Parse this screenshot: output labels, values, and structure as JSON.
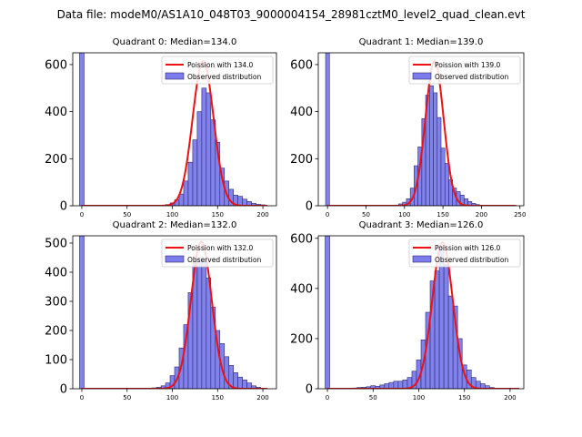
{
  "figure": {
    "suptitle": "Data file: modeM0/AS1A10_048T03_9000004154_28981cztM0_level2_quad_clean.evt"
  },
  "colors": {
    "bar_fill": "#7b7bec",
    "bar_edge": "#2a2a70",
    "poisson_line": "#ee1111",
    "axis": "#000000"
  },
  "chart_data": [
    {
      "type": "bar",
      "title": "Quadrant 0: Median=134.0",
      "median": 134.0,
      "legend": [
        "Poission with 134.0",
        "Observed distribution"
      ],
      "legend_position": "top-right",
      "xlim": [
        -10,
        215
      ],
      "ylim": [
        0,
        650
      ],
      "xticks": [
        0,
        50,
        100,
        150,
        200
      ],
      "yticks": [
        0,
        200,
        400,
        600
      ],
      "bin_width": 5,
      "outlier_bar": {
        "x": 0,
        "value": 650
      },
      "bins": [
        {
          "x": 95,
          "value": 5
        },
        {
          "x": 100,
          "value": 12
        },
        {
          "x": 105,
          "value": 25
        },
        {
          "x": 110,
          "value": 50
        },
        {
          "x": 115,
          "value": 105
        },
        {
          "x": 120,
          "value": 185
        },
        {
          "x": 125,
          "value": 280
        },
        {
          "x": 130,
          "value": 400
        },
        {
          "x": 135,
          "value": 500
        },
        {
          "x": 140,
          "value": 480
        },
        {
          "x": 145,
          "value": 365
        },
        {
          "x": 150,
          "value": 270
        },
        {
          "x": 155,
          "value": 160
        },
        {
          "x": 160,
          "value": 105
        },
        {
          "x": 165,
          "value": 70
        },
        {
          "x": 170,
          "value": 45
        },
        {
          "x": 175,
          "value": 40
        },
        {
          "x": 180,
          "value": 28
        },
        {
          "x": 185,
          "value": 18
        },
        {
          "x": 190,
          "value": 10
        },
        {
          "x": 195,
          "value": 6
        },
        {
          "x": 200,
          "value": 4
        }
      ],
      "poisson_peak": 615,
      "poisson_range": [
        0,
        205
      ]
    },
    {
      "type": "bar",
      "title": "Quadrant 1: Median=139.0",
      "median": 139.0,
      "legend": [
        "Poission with 139.0",
        "Observed distribution"
      ],
      "legend_position": "top-right",
      "xlim": [
        -12,
        255
      ],
      "ylim": [
        0,
        650
      ],
      "xticks": [
        0,
        50,
        100,
        150,
        200,
        250
      ],
      "yticks": [
        0,
        200,
        400,
        600
      ],
      "bin_width": 5,
      "outlier_bar": {
        "x": 0,
        "value": 650
      },
      "bins": [
        {
          "x": 90,
          "value": 3
        },
        {
          "x": 95,
          "value": 8
        },
        {
          "x": 100,
          "value": 15
        },
        {
          "x": 105,
          "value": 30
        },
        {
          "x": 110,
          "value": 75
        },
        {
          "x": 115,
          "value": 170
        },
        {
          "x": 120,
          "value": 250
        },
        {
          "x": 125,
          "value": 370
        },
        {
          "x": 130,
          "value": 470
        },
        {
          "x": 135,
          "value": 510
        },
        {
          "x": 140,
          "value": 480
        },
        {
          "x": 145,
          "value": 375
        },
        {
          "x": 150,
          "value": 245
        },
        {
          "x": 155,
          "value": 180
        },
        {
          "x": 160,
          "value": 110
        },
        {
          "x": 165,
          "value": 75
        },
        {
          "x": 170,
          "value": 60
        },
        {
          "x": 175,
          "value": 45
        },
        {
          "x": 180,
          "value": 30
        },
        {
          "x": 185,
          "value": 18
        },
        {
          "x": 190,
          "value": 10
        },
        {
          "x": 195,
          "value": 5
        }
      ],
      "poisson_peak": 615,
      "poisson_range": [
        0,
        245
      ]
    },
    {
      "type": "bar",
      "title": "Quadrant 2: Median=132.0",
      "median": 132.0,
      "legend": [
        "Poission with 132.0",
        "Observed distribution"
      ],
      "legend_position": "top-right",
      "xlim": [
        -10,
        215
      ],
      "ylim": [
        0,
        525
      ],
      "xticks": [
        0,
        50,
        100,
        150,
        200
      ],
      "yticks": [
        0,
        100,
        200,
        300,
        400,
        500
      ],
      "bin_width": 5,
      "outlier_bar": {
        "x": 0,
        "value": 525
      },
      "bins": [
        {
          "x": 80,
          "value": 3
        },
        {
          "x": 85,
          "value": 5
        },
        {
          "x": 90,
          "value": 10
        },
        {
          "x": 95,
          "value": 20
        },
        {
          "x": 100,
          "value": 45
        },
        {
          "x": 105,
          "value": 75
        },
        {
          "x": 110,
          "value": 140
        },
        {
          "x": 115,
          "value": 220
        },
        {
          "x": 120,
          "value": 330
        },
        {
          "x": 125,
          "value": 435
        },
        {
          "x": 130,
          "value": 445
        },
        {
          "x": 135,
          "value": 440
        },
        {
          "x": 140,
          "value": 380
        },
        {
          "x": 145,
          "value": 280
        },
        {
          "x": 150,
          "value": 200
        },
        {
          "x": 155,
          "value": 155
        },
        {
          "x": 160,
          "value": 110
        },
        {
          "x": 165,
          "value": 80
        },
        {
          "x": 170,
          "value": 55
        },
        {
          "x": 175,
          "value": 40
        },
        {
          "x": 180,
          "value": 30
        },
        {
          "x": 185,
          "value": 20
        },
        {
          "x": 190,
          "value": 10
        },
        {
          "x": 195,
          "value": 5
        }
      ],
      "poisson_peak": 505,
      "poisson_range": [
        0,
        205
      ]
    },
    {
      "type": "bar",
      "title": "Quadrant 3: Median=126.0",
      "median": 126.0,
      "legend": [
        "Poission with 126.0",
        "Observed distribution"
      ],
      "legend_position": "top-right",
      "xlim": [
        -10,
        215
      ],
      "ylim": [
        0,
        610
      ],
      "xticks": [
        0,
        50,
        100,
        150,
        200
      ],
      "yticks": [
        0,
        200,
        400,
        600
      ],
      "bin_width": 5,
      "outlier_bar": {
        "x": 0,
        "value": 610
      },
      "bins": [
        {
          "x": 30,
          "value": 3
        },
        {
          "x": 35,
          "value": 5
        },
        {
          "x": 40,
          "value": 6
        },
        {
          "x": 45,
          "value": 8
        },
        {
          "x": 50,
          "value": 12
        },
        {
          "x": 55,
          "value": 10
        },
        {
          "x": 60,
          "value": 15
        },
        {
          "x": 65,
          "value": 20
        },
        {
          "x": 70,
          "value": 25
        },
        {
          "x": 75,
          "value": 30
        },
        {
          "x": 80,
          "value": 30
        },
        {
          "x": 85,
          "value": 35
        },
        {
          "x": 90,
          "value": 45
        },
        {
          "x": 95,
          "value": 70
        },
        {
          "x": 100,
          "value": 115
        },
        {
          "x": 105,
          "value": 195
        },
        {
          "x": 110,
          "value": 305
        },
        {
          "x": 115,
          "value": 430
        },
        {
          "x": 120,
          "value": 470
        },
        {
          "x": 125,
          "value": 570
        },
        {
          "x": 130,
          "value": 495
        },
        {
          "x": 135,
          "value": 370
        },
        {
          "x": 140,
          "value": 330
        },
        {
          "x": 145,
          "value": 200
        },
        {
          "x": 150,
          "value": 95
        },
        {
          "x": 155,
          "value": 75
        },
        {
          "x": 160,
          "value": 45
        },
        {
          "x": 165,
          "value": 30
        },
        {
          "x": 170,
          "value": 20
        },
        {
          "x": 175,
          "value": 12
        },
        {
          "x": 180,
          "value": 5
        }
      ],
      "poisson_peak": 585,
      "poisson_range": [
        0,
        210
      ]
    }
  ]
}
